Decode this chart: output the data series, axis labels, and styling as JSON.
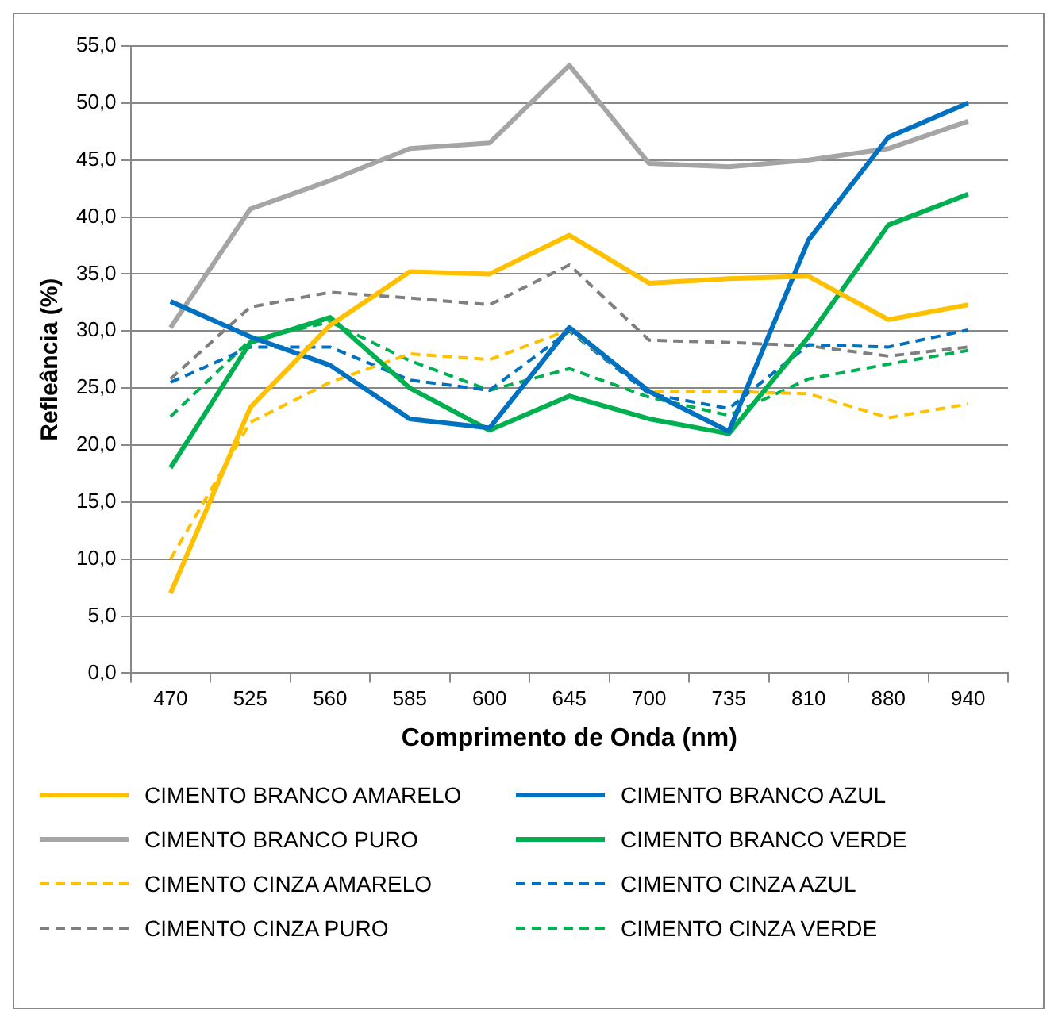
{
  "chart_data": {
    "type": "line",
    "xlabel": "Comprimento de Onda (nm)",
    "ylabel": "Refleância (%)",
    "categories": [
      "470",
      "525",
      "560",
      "585",
      "600",
      "645",
      "700",
      "735",
      "810",
      "880",
      "940"
    ],
    "ylim": [
      0,
      55
    ],
    "yticks": [
      {
        "value": 0,
        "label": "0,0"
      },
      {
        "value": 5,
        "label": "5,0"
      },
      {
        "value": 10,
        "label": "10,0"
      },
      {
        "value": 15,
        "label": "15,0"
      },
      {
        "value": 20,
        "label": "20,0"
      },
      {
        "value": 25,
        "label": "25,0"
      },
      {
        "value": 30,
        "label": "30,0"
      },
      {
        "value": 35,
        "label": "35,0"
      },
      {
        "value": 40,
        "label": "40,0"
      },
      {
        "value": 45,
        "label": "45,0"
      },
      {
        "value": 50,
        "label": "50,0"
      },
      {
        "value": 55,
        "label": "55,0"
      }
    ],
    "grid": "y",
    "legend": "bottom",
    "marker": "none",
    "series": [
      {
        "name": "CIMENTO BRANCO AMARELO",
        "color": "#ffc000",
        "line_style": "solid",
        "values": [
          7,
          23.3,
          30.5,
          35.2,
          35,
          38.4,
          34.2,
          34.6,
          34.8,
          31,
          32.3
        ]
      },
      {
        "name": "CIMENTO BRANCO AZUL",
        "color": "#0070c0",
        "line_style": "solid",
        "values": [
          32.6,
          29.5,
          27,
          22.3,
          21.5,
          30.3,
          24.7,
          21.2,
          38,
          47,
          50
        ]
      },
      {
        "name": "CIMENTO BRANCO PURO",
        "color": "#a5a5a5",
        "line_style": "solid",
        "values": [
          30.3,
          40.7,
          43.2,
          46,
          46.5,
          53.3,
          44.7,
          44.4,
          45,
          46,
          48.4
        ]
      },
      {
        "name": "CIMENTO BRANCO VERDE",
        "color": "#00b050",
        "line_style": "solid",
        "values": [
          18,
          29,
          31.2,
          25,
          21.3,
          24.3,
          22.3,
          21,
          29.5,
          39.3,
          42
        ]
      },
      {
        "name": "CIMENTO CINZA AMARELO",
        "color": "#ffc000",
        "line_style": "dashed",
        "values": [
          10,
          22,
          25.5,
          28,
          27.5,
          30.1,
          24.7,
          24.7,
          24.5,
          22.4,
          23.6
        ]
      },
      {
        "name": "CIMENTO CINZA AZUL",
        "color": "#0070c0",
        "line_style": "dashed",
        "values": [
          25.5,
          28.6,
          28.6,
          25.7,
          24.8,
          30,
          24.5,
          23.2,
          28.8,
          28.6,
          30.1
        ]
      },
      {
        "name": "CIMENTO CINZA PURO",
        "color": "#7f7f7f",
        "line_style": "dashed",
        "values": [
          25.8,
          32.1,
          33.4,
          32.9,
          32.3,
          35.8,
          29.2,
          29,
          28.7,
          27.8,
          28.6
        ]
      },
      {
        "name": "CIMENTO CINZA VERDE",
        "color": "#00b050",
        "line_style": "dashed",
        "values": [
          22.5,
          29.2,
          30.8,
          27.4,
          24.8,
          26.7,
          24.2,
          22.6,
          25.8,
          27.1,
          28.3
        ]
      }
    ]
  }
}
